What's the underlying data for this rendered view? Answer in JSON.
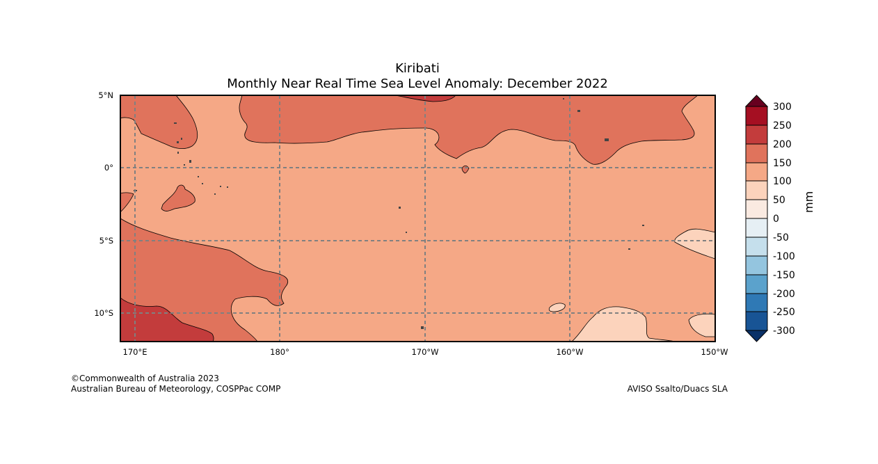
{
  "title": "Kiribati",
  "subtitle": "Monthly Near Real Time Sea Level Anomaly: December 2022",
  "map": {
    "lat_labels": [
      "5°N",
      "0°",
      "5°S",
      "10°S"
    ],
    "lon_labels": [
      "170°E",
      "180°",
      "170°W",
      "160°W",
      "150°W"
    ],
    "lat_range": [
      -12,
      5
    ],
    "lon_range": [
      171,
      210
    ]
  },
  "colorbar": {
    "unit": "mm",
    "levels": [
      "300",
      "250",
      "200",
      "150",
      "100",
      "50",
      "0",
      "-50",
      "-100",
      "-150",
      "-200",
      "-250",
      "-300"
    ],
    "colors": {
      "over": "#67001f",
      "b250_300": "#a50f22",
      "b200_250": "#c33c3c",
      "b150_200": "#e0735c",
      "b100_150": "#f5a886",
      "b50_100": "#fcd3bc",
      "b0_50": "#faeae1",
      "bm50_0": "#e6eff4",
      "bm100_m50": "#c5dfec",
      "bm150_m100": "#94c5df",
      "bm200_m150": "#5ba2cc",
      "bm250_m200": "#2f79b5",
      "bm300_m250": "#185495",
      "under": "#0a3168"
    }
  },
  "footer": {
    "copyright": "©Commonwealth of Australia 2023",
    "agency": "Australian Bureau of Meteorology, COSPPac COMP",
    "source": "AVISO Ssalto/Duacs SLA"
  }
}
